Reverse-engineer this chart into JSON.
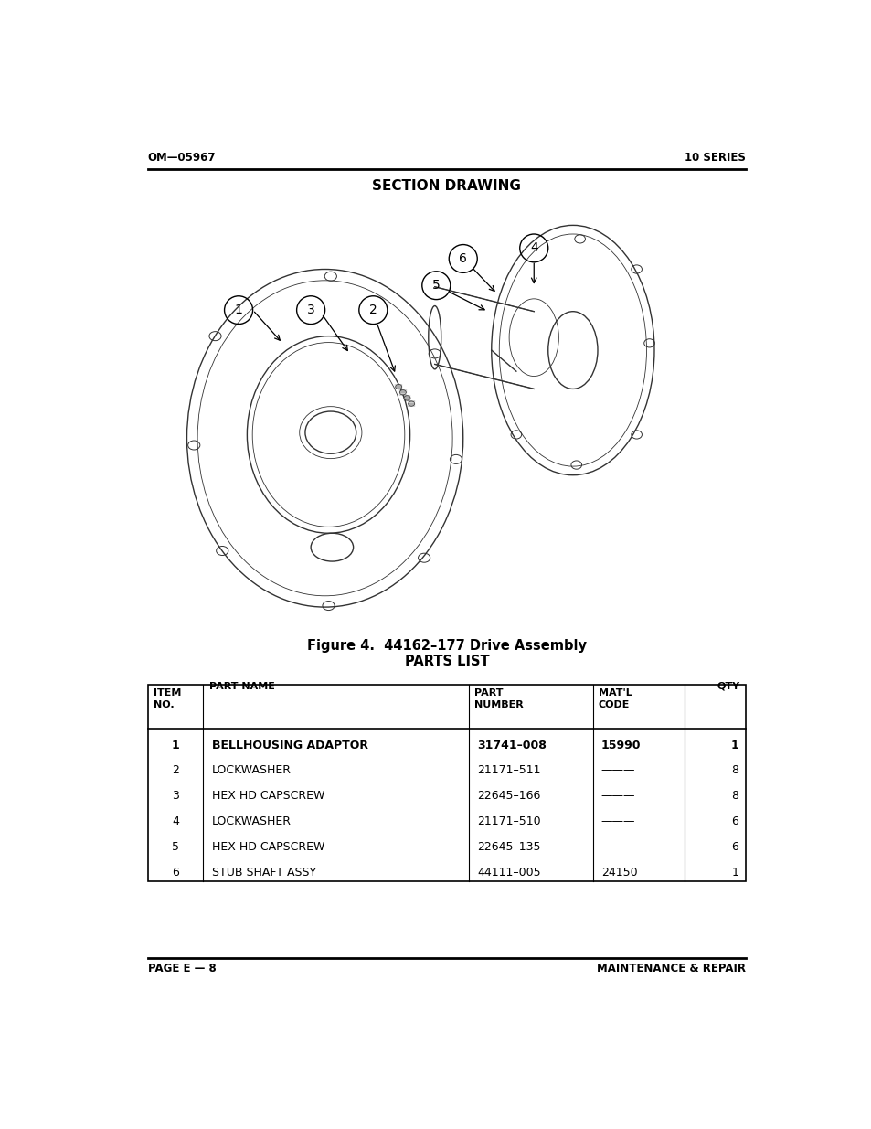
{
  "header_left": "OM—05967",
  "header_right": "10 SERIES",
  "section_title": "SECTION DRAWING",
  "figure_caption_line1": "Figure 4.  44162–177 Drive Assembly",
  "figure_caption_line2": "PARTS LIST",
  "footer_left": "PAGE E — 8",
  "footer_right": "MAINTENANCE & REPAIR",
  "table_headers_col1": "ITEM\nNO.",
  "table_headers_col2": "PART NAME",
  "table_headers_col3": "PART\nNUMBER",
  "table_headers_col4": "MAT'L\nCODE",
  "table_headers_col5": "QTY",
  "table_rows": [
    [
      "1",
      "BELLHOUSING ADAPTOR",
      "31741–008",
      "15990",
      "1"
    ],
    [
      "2",
      "LOCKWASHER",
      "21171–511",
      "———",
      "8"
    ],
    [
      "3",
      "HEX HD CAPSCREW",
      "22645–166",
      "———",
      "8"
    ],
    [
      "4",
      "LOCKWASHER",
      "21171–510",
      "———",
      "6"
    ],
    [
      "5",
      "HEX HD CAPSCREW",
      "22645–135",
      "———",
      "6"
    ],
    [
      "6",
      "STUB SHAFT ASSY",
      "44111–005",
      "24150",
      "1"
    ]
  ],
  "bg_color": "#ffffff",
  "text_color": "#000000"
}
